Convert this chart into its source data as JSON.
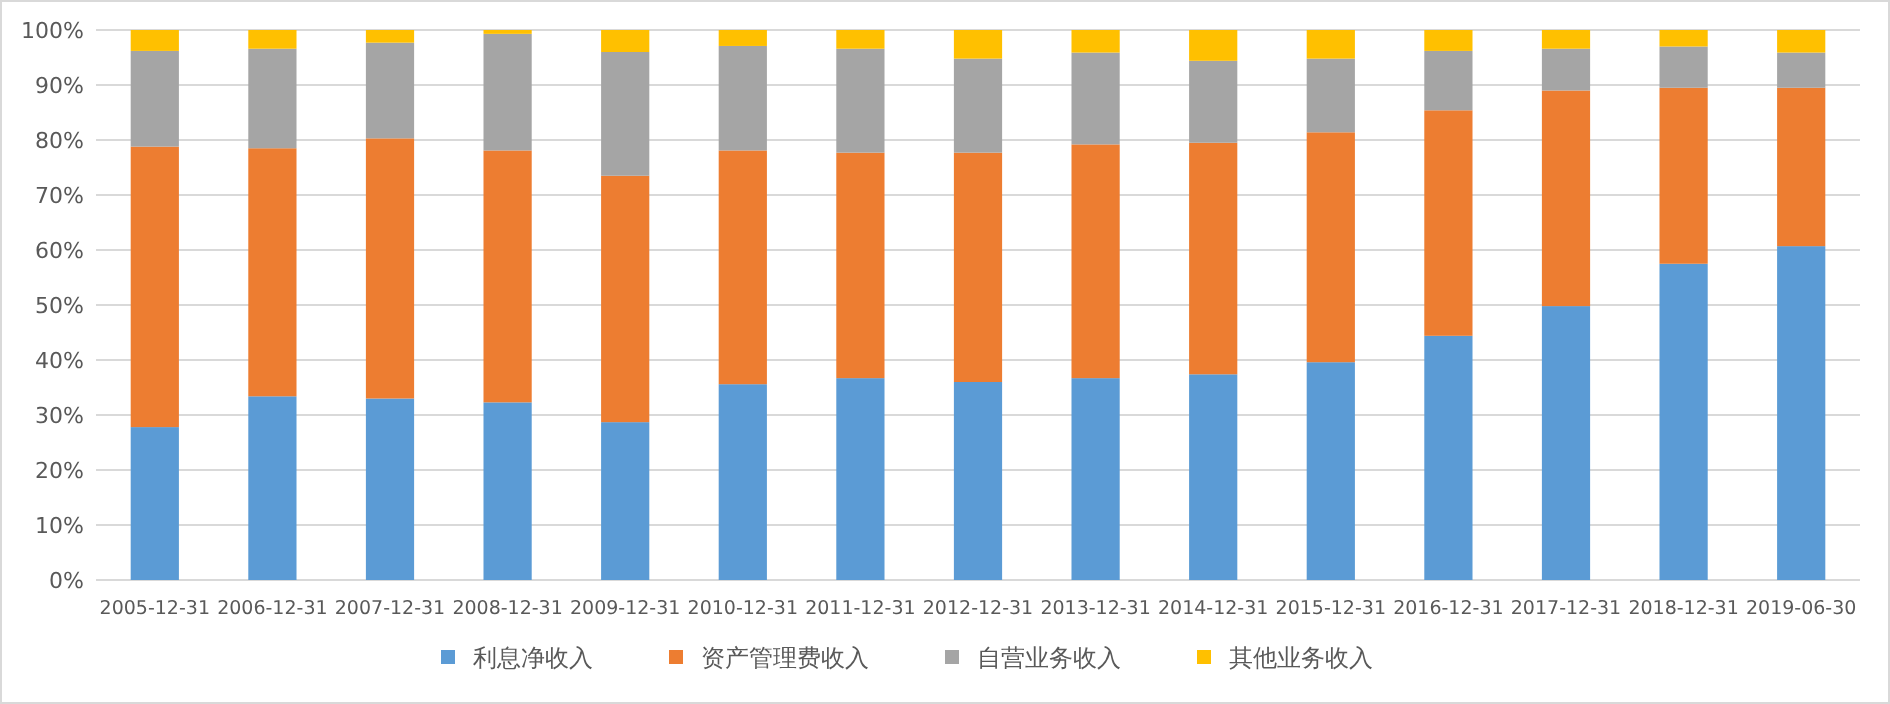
{
  "chart_data": {
    "type": "bar",
    "stacked": true,
    "grid": "y",
    "legend": "bottom",
    "categories": [
      "2005-12-31",
      "2006-12-31",
      "2007-12-31",
      "2008-12-31",
      "2009-12-31",
      "2010-12-31",
      "2011-12-31",
      "2012-12-31",
      "2013-12-31",
      "2014-12-31",
      "2015-12-31",
      "2016-12-31",
      "2017-12-31",
      "2018-12-31",
      "2019-06-30"
    ],
    "ylim": [
      0,
      100
    ],
    "yticks": [
      {
        "value": 0,
        "label": "0%"
      },
      {
        "value": 10,
        "label": "10%"
      },
      {
        "value": 20,
        "label": "20%"
      },
      {
        "value": 30,
        "label": "30%"
      },
      {
        "value": 40,
        "label": "40%"
      },
      {
        "value": 50,
        "label": "50%"
      },
      {
        "value": 60,
        "label": "60%"
      },
      {
        "value": 70,
        "label": "70%"
      },
      {
        "value": 80,
        "label": "80%"
      },
      {
        "value": 90,
        "label": "90%"
      },
      {
        "value": 100,
        "label": "100%"
      }
    ],
    "series": [
      {
        "name": "利息净收入",
        "color": "#5b9bd5",
        "values": [
          27.8,
          33.4,
          33.0,
          32.3,
          28.7,
          35.6,
          36.7,
          36.0,
          36.7,
          37.4,
          39.6,
          44.4,
          49.8,
          57.5,
          60.7
        ]
      },
      {
        "name": "资产管理费收入",
        "color": "#ed7d31",
        "values": [
          51.0,
          45.1,
          47.3,
          45.8,
          44.8,
          42.5,
          41.0,
          41.7,
          42.5,
          42.1,
          41.8,
          41.0,
          39.2,
          32.0,
          28.8
        ]
      },
      {
        "name": "自营业务收入",
        "color": "#a5a5a5",
        "values": [
          17.4,
          18.1,
          17.4,
          21.2,
          22.5,
          19.0,
          18.9,
          17.1,
          16.7,
          14.9,
          13.4,
          10.8,
          7.6,
          7.5,
          6.4
        ]
      },
      {
        "name": "其他业务收入",
        "color": "#ffc000",
        "values": [
          3.8,
          3.4,
          2.3,
          0.7,
          4.0,
          2.9,
          3.4,
          5.2,
          4.1,
          5.6,
          5.2,
          3.8,
          3.4,
          3.0,
          4.1
        ]
      }
    ]
  }
}
